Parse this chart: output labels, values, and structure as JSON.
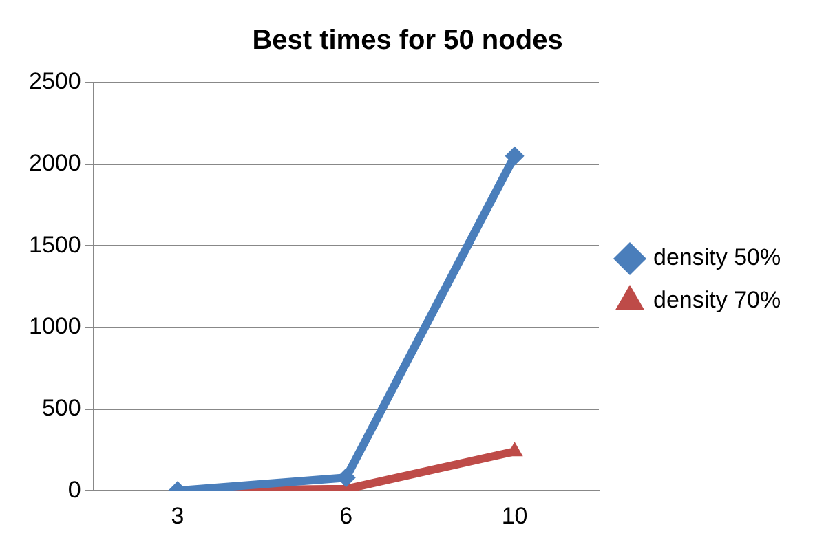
{
  "chart_data": {
    "type": "line",
    "title": "Best times for 50 nodes",
    "categories": [
      "3",
      "6",
      "10"
    ],
    "series": [
      {
        "name": "density 50%",
        "color": "#4a7ebb",
        "values": [
          0,
          80,
          2050
        ],
        "marker": "diamond"
      },
      {
        "name": "density 70%",
        "color": "#be4b48",
        "values": [
          0,
          10,
          240
        ],
        "marker": "triangle"
      }
    ],
    "ylim": [
      0,
      2500
    ],
    "yticks": [
      0,
      500,
      1000,
      1500,
      2000,
      2500
    ],
    "grid": "y",
    "legend": "right",
    "line_style": "solid"
  }
}
